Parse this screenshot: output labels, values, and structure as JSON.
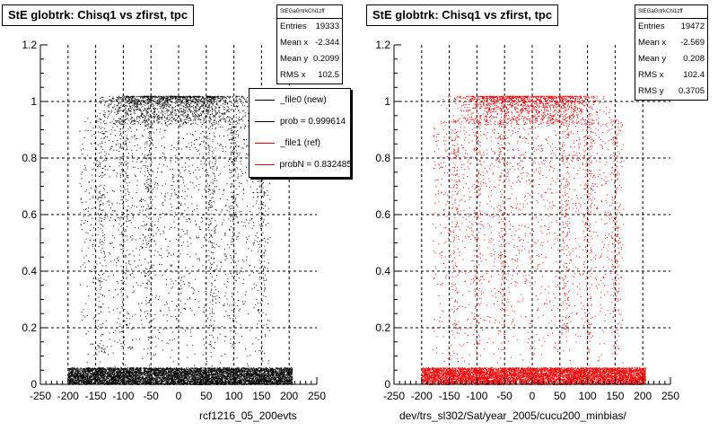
{
  "chart_data": [
    {
      "type": "scatter",
      "title": "StE globtrk: Chisq1 vs zfirst, tpc",
      "xlabel": "rcf1216_05_200evts",
      "ylabel": "",
      "xlim": [
        -250,
        250
      ],
      "ylim": [
        0,
        1.2
      ],
      "x_ticks": [
        "-250",
        "-200",
        "-150",
        "-100",
        "-50",
        "0",
        "50",
        "100",
        "150",
        "200",
        "250"
      ],
      "y_ticks": [
        "0",
        "0.2",
        "0.4",
        "0.6",
        "0.8",
        "1",
        "1.2"
      ],
      "grid": true,
      "color": "#000000",
      "stats": {
        "name": "StEGaGrtrkChi1zff",
        "rows": [
          {
            "label": "Entries",
            "value": "19333"
          },
          {
            "label": "Mean x",
            "value": "-2.344"
          },
          {
            "label": "Mean y",
            "value": "0.2099"
          },
          {
            "label": "RMS x",
            "value": "102.5"
          }
        ]
      },
      "legend": {
        "position": "top-right",
        "entries": [
          {
            "label": "_file0 (new)",
            "color": "#000000"
          },
          {
            "label": "prob = 0.999614",
            "color": "#000000"
          },
          {
            "label": "_file1 (ref)",
            "color": "#ff0000"
          },
          {
            "label": "probN = 0.832485",
            "color": "#ff0000"
          }
        ]
      },
      "distribution": {
        "x_range": [
          -200,
          205
        ],
        "dense_band_y": [
          0,
          0.06
        ],
        "upper_band_y": [
          0.92,
          1.02
        ],
        "upper_band_centers": [
          -60,
          45
        ]
      }
    },
    {
      "type": "scatter",
      "title": "StE globtrk: Chisq1 vs zfirst, tpc",
      "xlabel": "dev/trs_sl302/Sat/year_2005/cucu200_minbias/",
      "ylabel": "",
      "xlim": [
        -250,
        250
      ],
      "ylim": [
        0,
        1.2
      ],
      "x_ticks": [
        "-250",
        "-200",
        "-150",
        "-100",
        "-50",
        "0",
        "50",
        "100",
        "150",
        "200",
        "250"
      ],
      "y_ticks": [
        "0",
        "0.2",
        "0.4",
        "0.6",
        "0.8",
        "1",
        "1.2"
      ],
      "grid": true,
      "color": "#ff0000",
      "stats": {
        "name": "StEGaGrtrkChi1zff",
        "rows": [
          {
            "label": "Entries",
            "value": "19472"
          },
          {
            "label": "Mean x",
            "value": "-2.569"
          },
          {
            "label": "Mean y",
            "value": "0.208"
          },
          {
            "label": "RMS x",
            "value": "102.4"
          },
          {
            "label": "RMS y",
            "value": "0.3705"
          }
        ]
      },
      "distribution": {
        "x_range": [
          -200,
          205
        ],
        "dense_band_y": [
          0,
          0.06
        ],
        "upper_band_y": [
          0.92,
          1.02
        ],
        "upper_band_centers": [
          -60,
          45
        ]
      }
    }
  ]
}
